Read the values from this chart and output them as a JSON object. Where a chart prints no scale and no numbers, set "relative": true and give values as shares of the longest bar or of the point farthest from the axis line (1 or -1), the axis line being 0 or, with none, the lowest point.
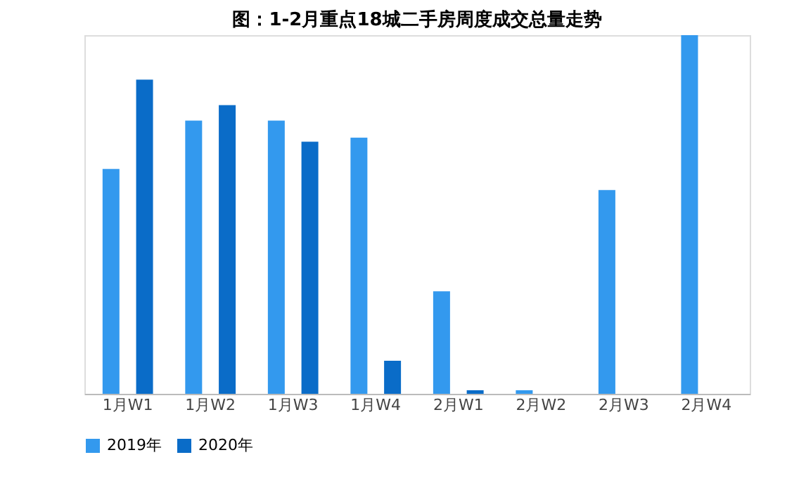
{
  "chart_data": {
    "type": "bar",
    "title": "图：1-2月重点18城二手房周度成交总量走势",
    "categories": [
      "1月W1",
      "1月W2",
      "1月W3",
      "1月W4",
      "2月W1",
      "2月W2",
      "2月W3",
      "2月W4"
    ],
    "relative": true,
    "legend": "bottom",
    "grid": false,
    "series": [
      {
        "name": "2019年",
        "color": "#3399ee",
        "values": [
          0.627,
          0.762,
          0.762,
          0.714,
          0.286,
          0.01,
          0.568,
          1.0
        ]
      },
      {
        "name": "2020年",
        "color": "#0a6cc8",
        "values": [
          0.876,
          0.805,
          0.703,
          0.092,
          0.01,
          null,
          null,
          null
        ]
      }
    ]
  }
}
